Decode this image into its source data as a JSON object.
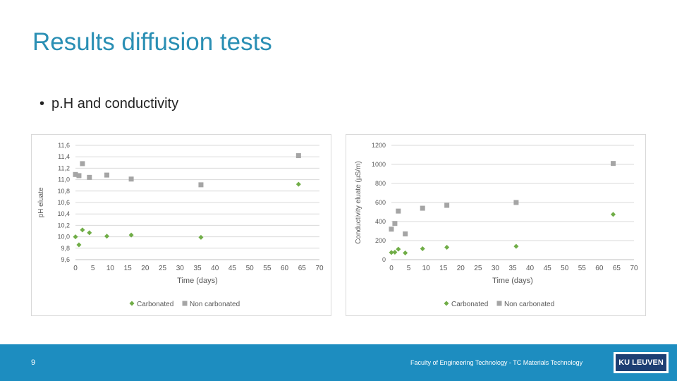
{
  "slide": {
    "title": "Results diffusion tests",
    "bullet": "p.H and conductivity",
    "bullet_symbol": "•"
  },
  "footer": {
    "page_number": "9",
    "text": "Faculty of Engineering Technology - TC Materials Technology",
    "logo": "KU LEUVEN",
    "color": "#1d8dc0"
  },
  "colors": {
    "title": "#2a8fb4",
    "carbonated": "#70ad47",
    "non_carbonated": "#a5a5a5"
  },
  "chart_data": [
    {
      "type": "scatter",
      "title": "",
      "xlabel": "Time (days)",
      "ylabel": "pH eluate",
      "xlim": [
        0,
        70
      ],
      "ylim": [
        9.6,
        11.6
      ],
      "x_ticks": [
        "0",
        "5",
        "10",
        "15",
        "20",
        "25",
        "30",
        "35",
        "40",
        "45",
        "50",
        "55",
        "60",
        "65",
        "70"
      ],
      "y_ticks": [
        "9,6",
        "9,8",
        "10,0",
        "10,2",
        "10,4",
        "10,6",
        "10,8",
        "11,0",
        "11,2",
        "11,4",
        "11,6"
      ],
      "grid": true,
      "legend_position": "bottom",
      "series": [
        {
          "name": "Carbonated",
          "marker": "diamond",
          "x": [
            0,
            1,
            2,
            4,
            9,
            16,
            36,
            64
          ],
          "y": [
            10.0,
            9.86,
            10.12,
            10.07,
            10.01,
            10.03,
            9.99,
            10.92
          ]
        },
        {
          "name": "Non carbonated",
          "marker": "square",
          "x": [
            0,
            1,
            2,
            4,
            9,
            16,
            36,
            64
          ],
          "y": [
            11.09,
            11.07,
            11.28,
            11.04,
            11.08,
            11.01,
            10.91,
            11.42
          ]
        }
      ]
    },
    {
      "type": "scatter",
      "title": "",
      "xlabel": "Time (days)",
      "ylabel": "Conductivity eluate (µS/m)",
      "xlim": [
        0,
        70
      ],
      "ylim": [
        0,
        1200
      ],
      "x_ticks": [
        "0",
        "5",
        "10",
        "15",
        "20",
        "25",
        "30",
        "35",
        "40",
        "45",
        "50",
        "55",
        "60",
        "65",
        "70"
      ],
      "y_ticks": [
        "0",
        "200",
        "400",
        "600",
        "800",
        "1000",
        "1200"
      ],
      "grid": true,
      "legend_position": "bottom",
      "series": [
        {
          "name": "Carbonated",
          "marker": "diamond",
          "x": [
            0,
            1,
            2,
            4,
            9,
            16,
            36,
            64
          ],
          "y": [
            75,
            78,
            110,
            70,
            115,
            130,
            140,
            475
          ]
        },
        {
          "name": "Non carbonated",
          "marker": "square",
          "x": [
            0,
            1,
            2,
            4,
            9,
            16,
            36,
            64
          ],
          "y": [
            320,
            380,
            510,
            270,
            540,
            570,
            600,
            1010
          ]
        }
      ]
    }
  ]
}
